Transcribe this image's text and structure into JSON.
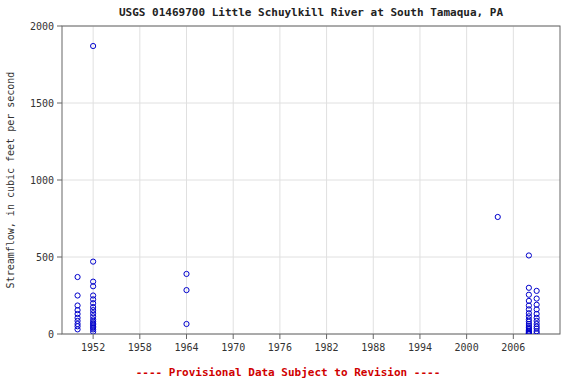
{
  "chart_data": {
    "type": "scatter",
    "title": "USGS 01469700 Little Schuylkill River at South Tamaqua, PA",
    "ylabel": "Streamflow, in cubic feet per second",
    "footer": "---- Provisional Data Subject to Revision ----",
    "color": "#0000CC",
    "marker": "circle",
    "grid": true,
    "xlim": [
      1948,
      2012
    ],
    "ylim": [
      0,
      2000
    ],
    "xticks": [
      1952,
      1958,
      1964,
      1970,
      1976,
      1982,
      1988,
      1994,
      2000,
      2006
    ],
    "yticks": [
      0,
      500,
      1000,
      1500,
      2000
    ],
    "x": [
      1950,
      1950,
      1950,
      1950,
      1950,
      1950,
      1950,
      1950,
      1950,
      1950,
      1952,
      1952,
      1952,
      1952,
      1952,
      1952,
      1952,
      1952,
      1952,
      1952,
      1952,
      1952,
      1952,
      1952,
      1952,
      1952,
      1952,
      1952,
      1952,
      1964,
      1964,
      1964,
      2004,
      2008,
      2008,
      2008,
      2008,
      2008,
      2008,
      2008,
      2008,
      2008,
      2008,
      2008,
      2008,
      2008,
      2008,
      2008,
      2008,
      2008,
      2008,
      2008,
      2009,
      2009,
      2009,
      2009,
      2009,
      2009,
      2009,
      2009,
      2009,
      2009,
      2009,
      2009
    ],
    "values": [
      370,
      250,
      185,
      155,
      130,
      105,
      85,
      65,
      50,
      30,
      1870,
      470,
      340,
      310,
      250,
      225,
      200,
      175,
      155,
      135,
      115,
      95,
      80,
      70,
      60,
      50,
      40,
      30,
      15,
      390,
      285,
      65,
      760,
      510,
      300,
      255,
      215,
      185,
      160,
      135,
      115,
      95,
      80,
      65,
      52,
      40,
      32,
      22,
      15,
      10,
      5,
      2,
      280,
      230,
      190,
      160,
      130,
      105,
      85,
      65,
      48,
      35,
      18,
      5
    ]
  }
}
